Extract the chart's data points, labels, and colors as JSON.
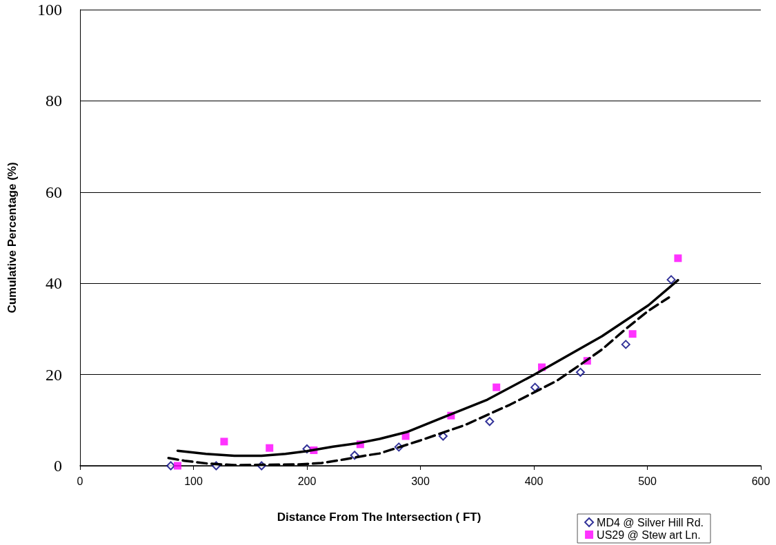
{
  "chart_data": {
    "type": "scatter",
    "xlabel": "Distance From The Intersection ( FT)",
    "ylabel": "Cumulative Percentage (%)",
    "xlim": [
      0,
      600
    ],
    "xticks": [
      0,
      100,
      200,
      300,
      400,
      500,
      600
    ],
    "ylim": [
      0,
      100
    ],
    "yticks": [
      0,
      20,
      40,
      60,
      80,
      100
    ],
    "grid": "y",
    "legend": "bottom right",
    "series": [
      {
        "name": "MD4 @ Silver Hill Rd.",
        "color": "#000080",
        "marker": "diamond",
        "x": [
          80,
          120,
          160,
          200,
          242,
          281,
          320,
          361,
          401,
          441,
          481,
          521
        ],
        "values": [
          0,
          0,
          0,
          3.7,
          2.3,
          4.1,
          6.5,
          9.7,
          17.2,
          20.5,
          26.6,
          40.8
        ]
      },
      {
        "name": "US29 @ Stew art Ln.",
        "color": "#ff00ff",
        "marker": "square",
        "x": [
          86,
          127,
          167,
          206,
          247,
          287,
          327,
          367,
          407,
          447,
          487,
          527
        ],
        "values": [
          0,
          5.3,
          3.9,
          3.4,
          4.7,
          6.5,
          11,
          17.2,
          21.6,
          23,
          28.9,
          45.5
        ]
      },
      {
        "type": "line",
        "color": "#000000",
        "line_style": "solid",
        "marker": "none",
        "x": [
          86,
          111,
          136,
          160,
          181,
          200,
          223,
          246,
          264,
          288,
          318,
          359,
          399,
          460,
          501,
          527
        ],
        "values": [
          3.3,
          2.6,
          2.2,
          2.2,
          2.6,
          3.2,
          4.2,
          5,
          5.9,
          7.4,
          10.4,
          14.5,
          19.8,
          28.4,
          35.2,
          40.7
        ]
      },
      {
        "type": "line",
        "color": "#000000",
        "line_style": "dashed",
        "marker": "none",
        "x": [
          78,
          92,
          112,
          136,
          193,
          213,
          233,
          253,
          264,
          298,
          339,
          379,
          420,
          440,
          460,
          481,
          501,
          519
        ],
        "values": [
          1.7,
          1.1,
          0.5,
          0.15,
          0.3,
          0.6,
          1.4,
          2.3,
          2.7,
          5.4,
          8.9,
          13.4,
          18.6,
          22,
          25.5,
          30,
          34,
          36.9
        ]
      }
    ]
  }
}
